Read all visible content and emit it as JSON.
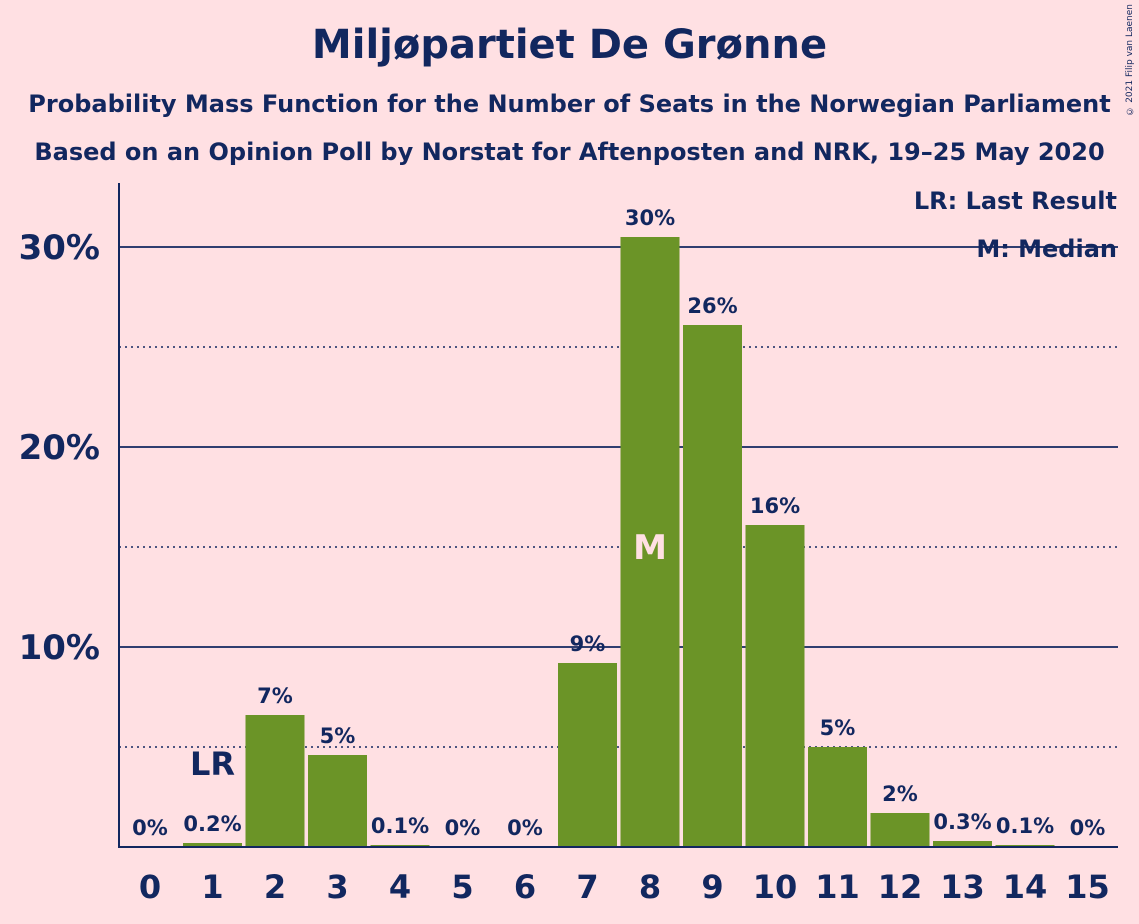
{
  "title": "Miljøpartiet De Grønne",
  "subtitle1": "Probability Mass Function for the Number of Seats in the Norwegian Parliament",
  "subtitle2": "Based on an Opinion Poll by Norstat for Aftenposten and NRK, 19–25 May 2020",
  "copyright": "© 2021 Filip van Laenen",
  "colors": {
    "bar": "#6b9427",
    "text": "#12275f",
    "background": "#ffe0e3",
    "median_text": "#ffe0e3"
  },
  "chart_data": {
    "type": "bar",
    "categories": [
      "0",
      "1",
      "2",
      "3",
      "4",
      "5",
      "6",
      "7",
      "8",
      "9",
      "10",
      "11",
      "12",
      "13",
      "14",
      "15"
    ],
    "values": [
      0,
      0.2,
      6.6,
      4.6,
      0.1,
      0,
      0,
      9.2,
      30.5,
      26.1,
      16.1,
      5.0,
      1.7,
      0.3,
      0.1,
      0
    ],
    "value_labels": [
      "0%",
      "0.2%",
      "7%",
      "5%",
      "0.1%",
      "0%",
      "0%",
      "9%",
      "30%",
      "26%",
      "16%",
      "5%",
      "2%",
      "0.3%",
      "0.1%",
      "0%"
    ],
    "ylim": [
      0,
      33
    ],
    "yticks": [
      10,
      20,
      30
    ],
    "ytick_labels": [
      "10%",
      "20%",
      "30%"
    ],
    "minor_gridlines": [
      5,
      15,
      25
    ],
    "last_result": {
      "category": "1",
      "label": "LR"
    },
    "median": {
      "category": "8",
      "label": "M"
    },
    "legend": [
      "LR: Last Result",
      "M: Median"
    ],
    "legend_position": "top-right"
  }
}
